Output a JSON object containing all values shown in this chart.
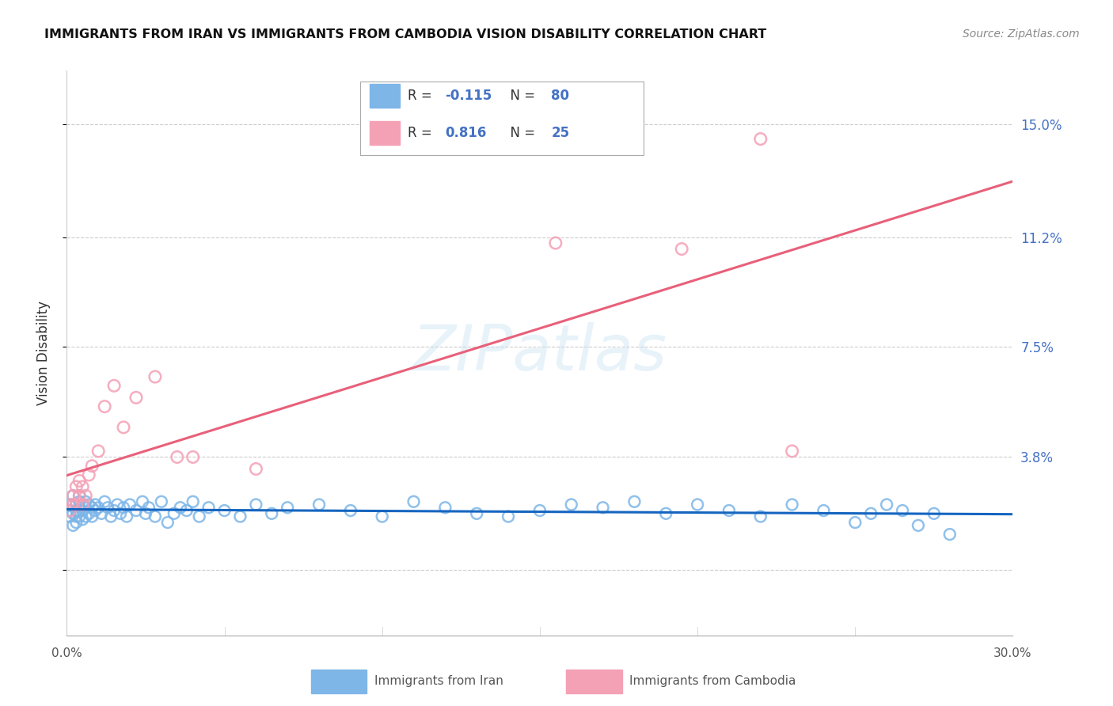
{
  "title": "IMMIGRANTS FROM IRAN VS IMMIGRANTS FROM CAMBODIA VISION DISABILITY CORRELATION CHART",
  "source": "Source: ZipAtlas.com",
  "ylabel": "Vision Disability",
  "watermark": "ZIPatlas",
  "yticks": [
    0.0,
    0.038,
    0.075,
    0.112,
    0.15
  ],
  "ytick_labels": [
    "",
    "3.8%",
    "7.5%",
    "11.2%",
    "15.0%"
  ],
  "xlim": [
    0.0,
    0.3
  ],
  "ylim": [
    -0.022,
    0.168
  ],
  "iran_R": -0.115,
  "iran_N": 80,
  "cambodia_R": 0.816,
  "cambodia_N": 25,
  "iran_color": "#7EB6E8",
  "iran_edge_color": "#5A9ED4",
  "cambodia_color": "#F4A0B5",
  "cambodia_edge_color": "#E87090",
  "iran_line_color": "#1565C0",
  "cambodia_line_color": "#E8607A",
  "legend_label_iran": "Immigrants from Iran",
  "legend_label_cambodia": "Immigrants from Cambodia",
  "iran_x": [
    0.001,
    0.001,
    0.001,
    0.002,
    0.002,
    0.002,
    0.002,
    0.003,
    0.003,
    0.003,
    0.003,
    0.004,
    0.004,
    0.004,
    0.004,
    0.005,
    0.005,
    0.005,
    0.006,
    0.006,
    0.006,
    0.007,
    0.007,
    0.008,
    0.008,
    0.009,
    0.009,
    0.01,
    0.011,
    0.012,
    0.013,
    0.014,
    0.015,
    0.016,
    0.017,
    0.018,
    0.019,
    0.02,
    0.022,
    0.024,
    0.025,
    0.026,
    0.028,
    0.03,
    0.032,
    0.034,
    0.036,
    0.038,
    0.04,
    0.042,
    0.045,
    0.05,
    0.055,
    0.06,
    0.065,
    0.07,
    0.08,
    0.09,
    0.1,
    0.11,
    0.12,
    0.13,
    0.14,
    0.15,
    0.16,
    0.17,
    0.18,
    0.19,
    0.2,
    0.21,
    0.22,
    0.23,
    0.24,
    0.25,
    0.255,
    0.26,
    0.265,
    0.27,
    0.275,
    0.28
  ],
  "iran_y": [
    0.018,
    0.02,
    0.022,
    0.015,
    0.019,
    0.022,
    0.025,
    0.018,
    0.02,
    0.016,
    0.022,
    0.018,
    0.02,
    0.023,
    0.025,
    0.017,
    0.02,
    0.022,
    0.018,
    0.021,
    0.023,
    0.019,
    0.022,
    0.018,
    0.021,
    0.02,
    0.022,
    0.021,
    0.019,
    0.023,
    0.021,
    0.018,
    0.02,
    0.022,
    0.019,
    0.021,
    0.018,
    0.022,
    0.02,
    0.023,
    0.019,
    0.021,
    0.018,
    0.023,
    0.016,
    0.019,
    0.021,
    0.02,
    0.023,
    0.018,
    0.021,
    0.02,
    0.018,
    0.022,
    0.019,
    0.021,
    0.022,
    0.02,
    0.018,
    0.023,
    0.021,
    0.019,
    0.018,
    0.02,
    0.022,
    0.021,
    0.023,
    0.019,
    0.022,
    0.02,
    0.018,
    0.022,
    0.02,
    0.016,
    0.019,
    0.022,
    0.02,
    0.015,
    0.019,
    0.012
  ],
  "cambodia_x": [
    0.001,
    0.002,
    0.002,
    0.003,
    0.003,
    0.004,
    0.004,
    0.005,
    0.005,
    0.006,
    0.007,
    0.008,
    0.01,
    0.012,
    0.015,
    0.018,
    0.022,
    0.028,
    0.035,
    0.04,
    0.06,
    0.155,
    0.195,
    0.22,
    0.23
  ],
  "cambodia_y": [
    0.02,
    0.022,
    0.025,
    0.022,
    0.028,
    0.025,
    0.03,
    0.022,
    0.028,
    0.025,
    0.032,
    0.035,
    0.04,
    0.055,
    0.062,
    0.048,
    0.058,
    0.065,
    0.038,
    0.038,
    0.034,
    0.11,
    0.108,
    0.145,
    0.04
  ]
}
